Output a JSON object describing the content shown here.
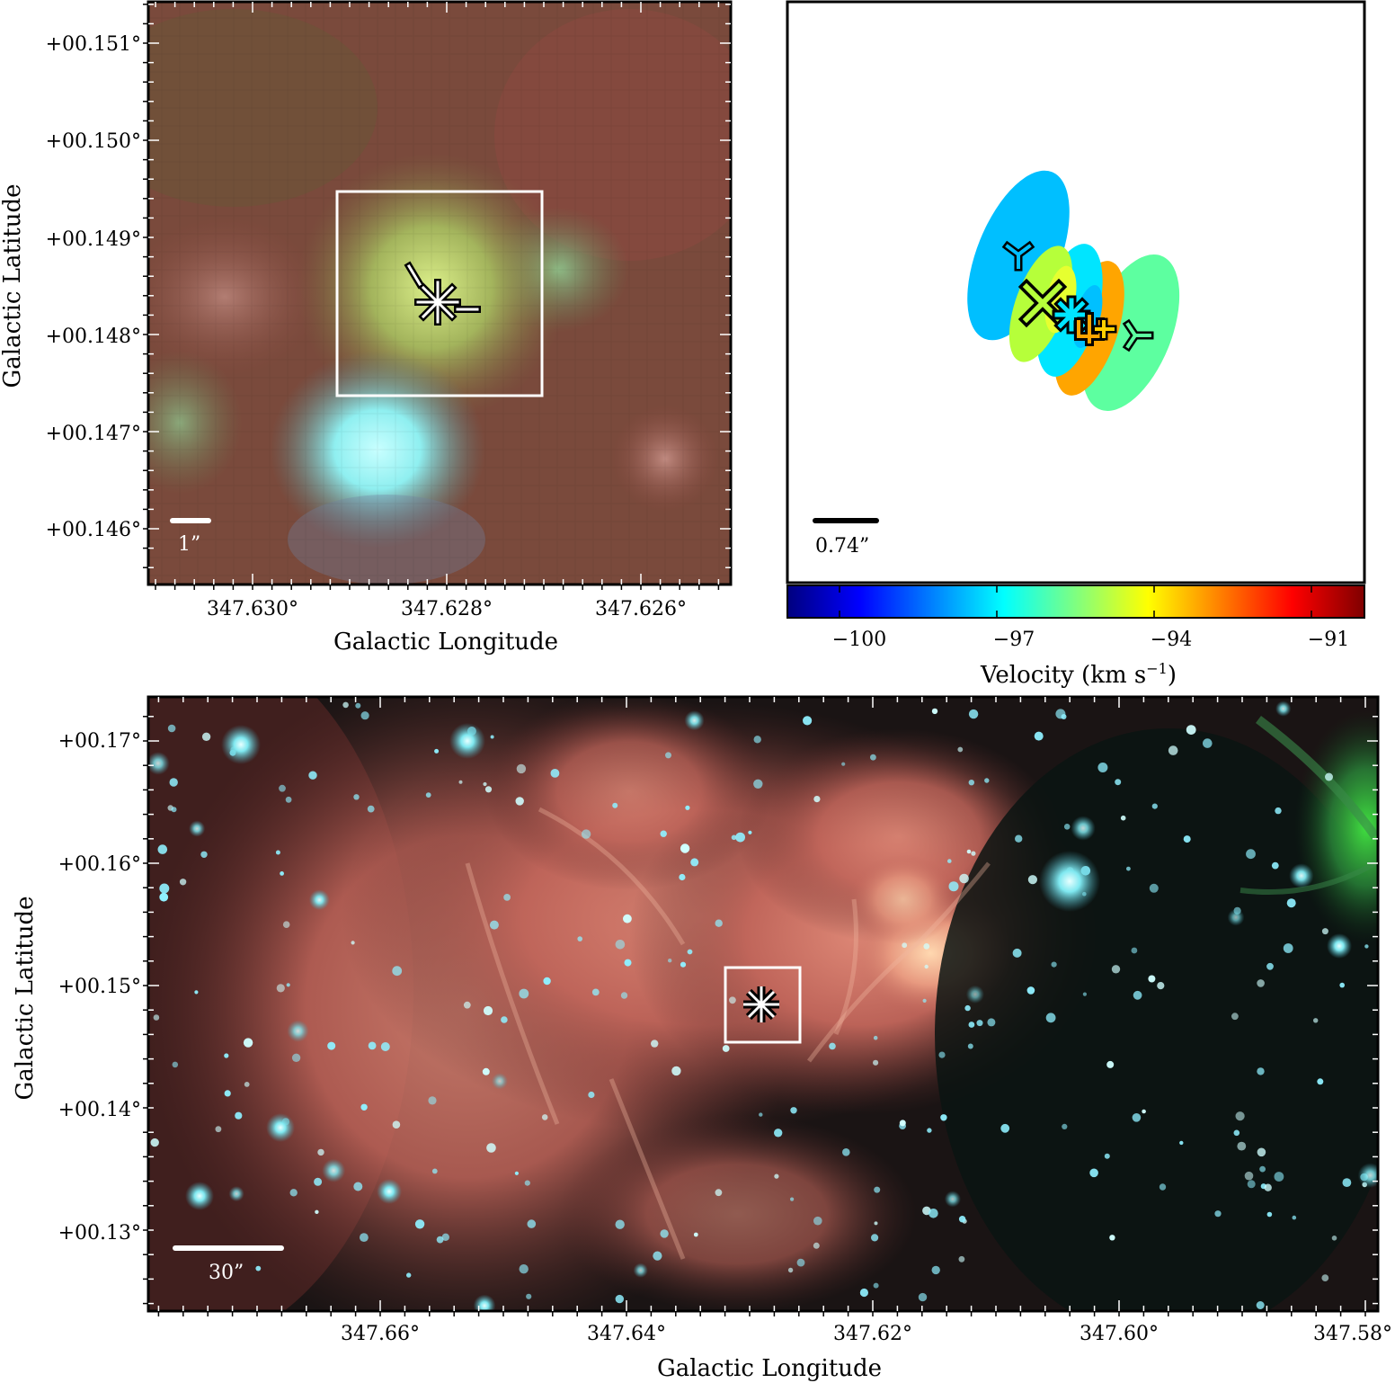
{
  "colors": {
    "background": "#ffffff",
    "frame": "#000000",
    "marker_box": "#ffffff",
    "nebula": "#b85a4c",
    "star_cyan": "#8ff0ff",
    "ellipse_colors": [
      "#00bfff",
      "#b6ff3a",
      "#00e5ff",
      "#ffa500",
      "#5dffa0"
    ]
  },
  "panel_top_left": {
    "tick_labels_y": [
      "+00.151°",
      "+00.150°",
      "+00.149°",
      "+00.148°",
      "+00.147°",
      "+00.146°"
    ],
    "tick_labels_x": [
      "347.630°",
      "347.628°",
      "347.626°"
    ],
    "xlabel": "Galactic Longitude",
    "ylabel": "Galactic Latitude",
    "scalebar_label": "1”"
  },
  "panel_top_right": {
    "scalebar_label": "0.74”",
    "colorbar": {
      "ticks": [
        "−100",
        "−97",
        "−94",
        "−91"
      ],
      "label": "Velocity (km s",
      "label_sup": "−1",
      "label_end": ")",
      "range": [
        -101,
        -90
      ],
      "colormap": "jet"
    }
  },
  "panel_bottom": {
    "tick_labels_y": [
      "+00.17°",
      "+00.16°",
      "+00.15°",
      "+00.14°",
      "+00.13°"
    ],
    "tick_labels_x": [
      "347.66°",
      "347.64°",
      "347.62°",
      "347.60°",
      "347.58°"
    ],
    "xlabel": "Galactic Longitude",
    "ylabel": "Galactic Latitude",
    "scalebar_label": "30”"
  }
}
